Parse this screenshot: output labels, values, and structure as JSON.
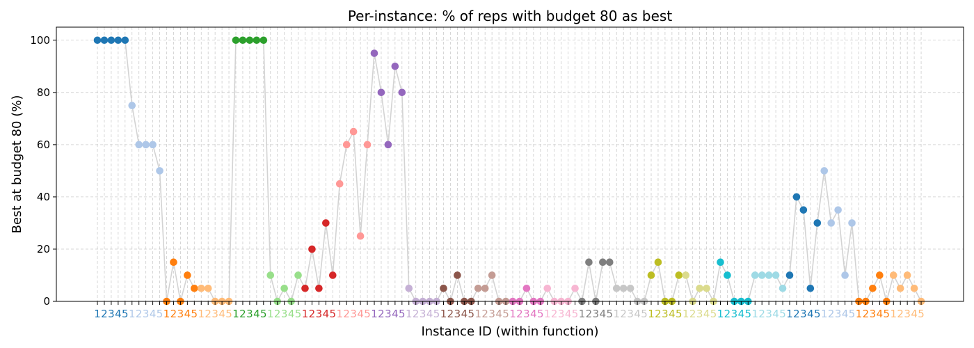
{
  "chart_data": {
    "type": "scatter",
    "title": "Per-instance: % of reps with budget 80 as best",
    "xlabel": "Instance ID (within function)",
    "ylabel": "Best at budget 80 (%)",
    "ylim": [
      0,
      105
    ],
    "yticks": [
      0,
      20,
      40,
      60,
      80,
      100
    ],
    "grid": true,
    "connected": true,
    "connector_color": "#d3d3d3",
    "tick_labels": [
      "1",
      "2",
      "3",
      "4",
      "5"
    ],
    "palette": [
      "#1f77b4",
      "#aec7e8",
      "#ff7f0e",
      "#ffbb78",
      "#2ca02c",
      "#98df8a",
      "#d62728",
      "#ff9896",
      "#9467bd",
      "#c5b0d5",
      "#8c564b",
      "#c49c94",
      "#e377c2",
      "#f7b6d2",
      "#7f7f7f",
      "#c7c7c7",
      "#bcbd22",
      "#dbdb8d",
      "#17becf",
      "#9edae5"
    ],
    "values": [
      100,
      100,
      100,
      100,
      100,
      75,
      60,
      60,
      60,
      50,
      0,
      15,
      0,
      10,
      5,
      5,
      5,
      0,
      0,
      0,
      100,
      100,
      100,
      100,
      100,
      10,
      0,
      5,
      0,
      10,
      5,
      20,
      5,
      30,
      10,
      45,
      60,
      65,
      25,
      60,
      95,
      80,
      60,
      90,
      80,
      5,
      0,
      0,
      0,
      0,
      5,
      0,
      10,
      0,
      0,
      5,
      5,
      10,
      0,
      0,
      0,
      0,
      5,
      0,
      0,
      5,
      0,
      0,
      0,
      5,
      0,
      15,
      0,
      15,
      15,
      5,
      5,
      5,
      0,
      0,
      10,
      15,
      0,
      0,
      10,
      10,
      0,
      5,
      5,
      0,
      15,
      10,
      0,
      0,
      0,
      10,
      10,
      10,
      10,
      5,
      10,
      40,
      35,
      5,
      30,
      50,
      30,
      35,
      10,
      30,
      0,
      0,
      5,
      10,
      0,
      10,
      5,
      10,
      5,
      0
    ]
  }
}
